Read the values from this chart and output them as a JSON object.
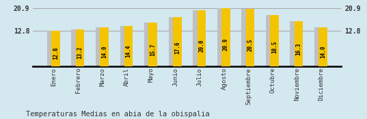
{
  "categories": [
    "Enero",
    "Febrero",
    "Marzo",
    "Abril",
    "Mayo",
    "Junio",
    "Julio",
    "Agosto",
    "Septiembre",
    "Octubre",
    "Noviembre",
    "Diciembre"
  ],
  "values": [
    12.8,
    13.2,
    14.0,
    14.4,
    15.7,
    17.6,
    20.0,
    20.9,
    20.5,
    18.5,
    16.3,
    14.0
  ],
  "bar_color_yellow": "#F5C400",
  "bar_color_gray": "#C0C0C0",
  "background_color": "#D4E8F0",
  "title": "Temperaturas Medias en abia de la obispalia",
  "ylim_min": 0,
  "ylim_max": 22.5,
  "yticks": [
    12.8,
    20.9
  ],
  "hline_color": "#AAAAAA",
  "value_fontsize": 5.5,
  "title_fontsize": 7.5,
  "xlabel_fontsize": 6.5,
  "spine_color": "#111111"
}
